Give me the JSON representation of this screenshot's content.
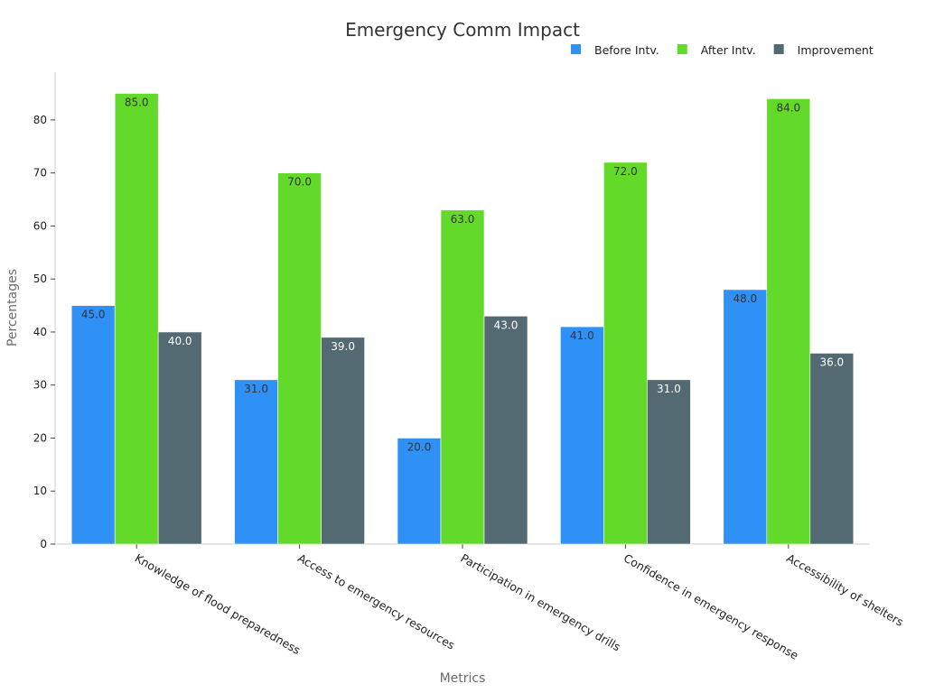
{
  "chart_data": {
    "type": "bar",
    "title": "Emergency Comm Impact",
    "xlabel": "Metrics",
    "ylabel": "Percentages",
    "categories": [
      "Knowledge of flood preparedness",
      "Access to emergency resources",
      "Participation in emergency drills",
      "Confidence in emergency response",
      "Accessibility of shelters"
    ],
    "series": [
      {
        "name": "Before Intv.",
        "color": "#2f90f5",
        "label_color": "#333333",
        "values": [
          45.0,
          31.0,
          20.0,
          41.0,
          48.0
        ]
      },
      {
        "name": "After Intv.",
        "color": "#63d929",
        "label_color": "#333333",
        "values": [
          85.0,
          70.0,
          63.0,
          72.0,
          84.0
        ]
      },
      {
        "name": "Improvement",
        "color": "#546a73",
        "label_color": "#ffffff",
        "values": [
          40.0,
          39.0,
          43.0,
          31.0,
          36.0
        ]
      }
    ],
    "ylim": [
      0,
      89
    ],
    "yticks": [
      0,
      10,
      20,
      30,
      40,
      50,
      60,
      70,
      80
    ],
    "grid": false,
    "legend_position": "top-right"
  }
}
